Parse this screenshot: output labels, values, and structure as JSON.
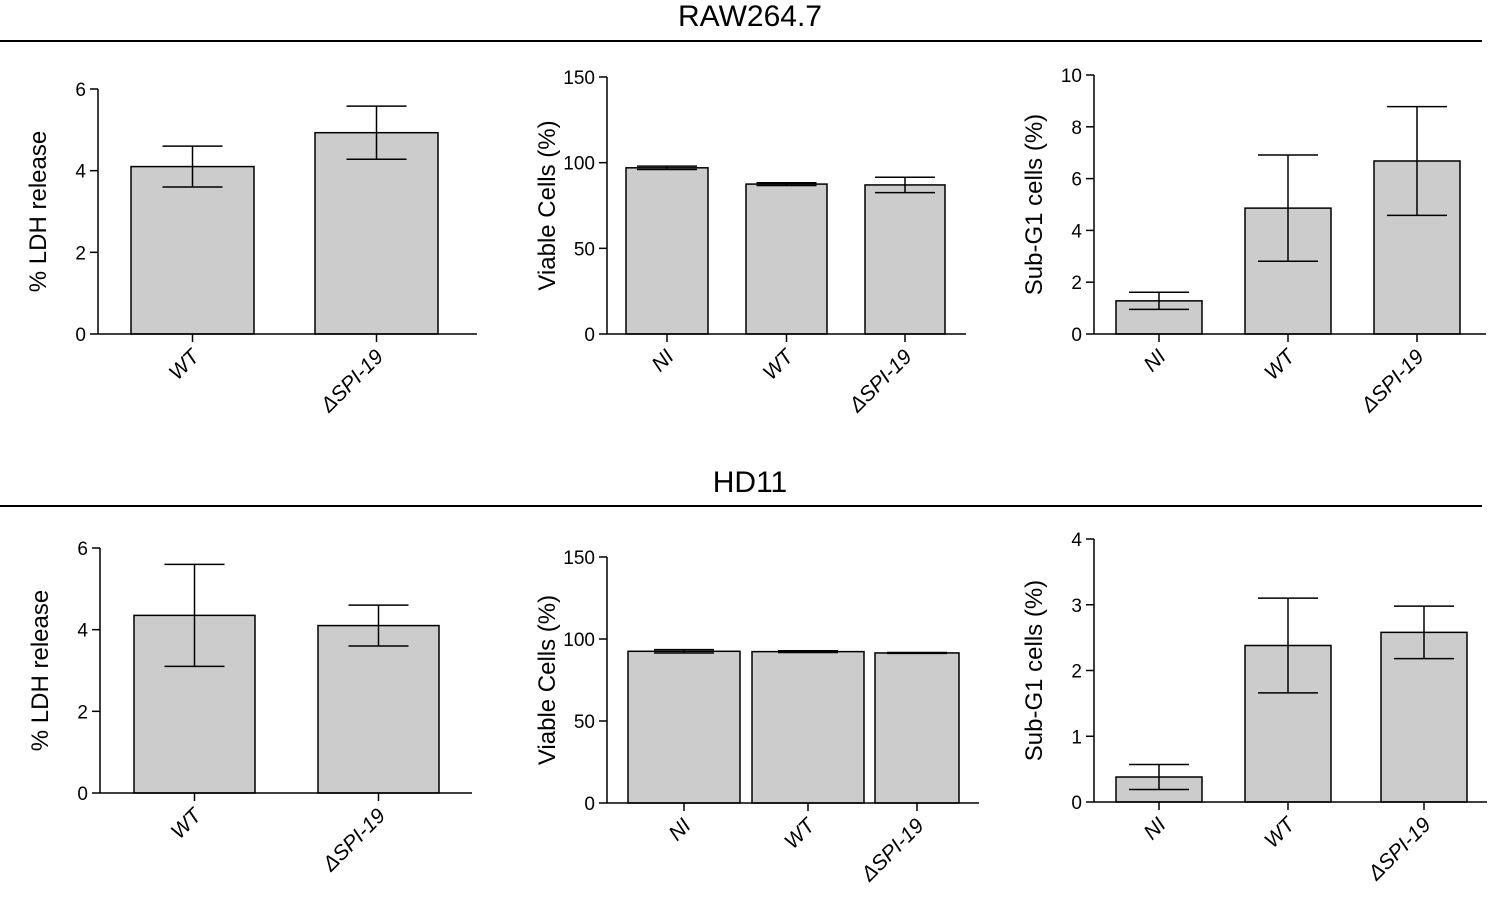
{
  "sections": [
    {
      "title": "RAW264.7"
    },
    {
      "title": "HD11"
    }
  ],
  "chart_data": [
    {
      "type": "bar",
      "panel": "RAW264.7",
      "ylabel": "% LDH release",
      "xlabel": "",
      "categories": [
        "WT",
        "ΔSPI-19"
      ],
      "values": [
        4.1,
        4.93
      ],
      "error": [
        0.5,
        0.65
      ],
      "ylim": [
        0,
        6
      ],
      "yticks": [
        0,
        2,
        4,
        6
      ],
      "grid": false,
      "bar_color": "#cccccc"
    },
    {
      "type": "bar",
      "panel": "RAW264.7",
      "ylabel": "Viable Cells (%)",
      "xlabel": "",
      "categories": [
        "NI",
        "WT",
        "ΔSPI-19"
      ],
      "values": [
        97,
        87.5,
        87
      ],
      "error": [
        1,
        0.8,
        4.5
      ],
      "ylim": [
        0,
        150
      ],
      "yticks": [
        0,
        50,
        100,
        150
      ],
      "grid": false,
      "bar_color": "#cccccc"
    },
    {
      "type": "bar",
      "panel": "RAW264.7",
      "ylabel": "Sub-G1 cells (%)",
      "xlabel": "",
      "categories": [
        "NI",
        "WT",
        "ΔSPI-19"
      ],
      "values": [
        1.28,
        4.86,
        6.68
      ],
      "error": [
        0.33,
        2.05,
        2.1
      ],
      "ylim": [
        0,
        10
      ],
      "yticks": [
        0,
        2,
        4,
        6,
        8,
        10
      ],
      "grid": false,
      "bar_color": "#cccccc"
    },
    {
      "type": "bar",
      "panel": "HD11",
      "ylabel": "% LDH release",
      "xlabel": "",
      "categories": [
        "WT",
        "ΔSPI-19"
      ],
      "values": [
        4.35,
        4.1
      ],
      "error": [
        1.25,
        0.5
      ],
      "ylim": [
        0,
        6
      ],
      "yticks": [
        0,
        2,
        4,
        6
      ],
      "grid": false,
      "bar_color": "#cccccc"
    },
    {
      "type": "bar",
      "panel": "HD11",
      "ylabel": "Viable Cells (%)",
      "xlabel": "",
      "categories": [
        "NI",
        "WT",
        "ΔSPI-19"
      ],
      "values": [
        92.5,
        92.3,
        91.5
      ],
      "error": [
        1,
        0.5,
        0.3
      ],
      "ylim": [
        0,
        150
      ],
      "yticks": [
        0,
        50,
        100,
        150
      ],
      "grid": false,
      "bar_color": "#cccccc"
    },
    {
      "type": "bar",
      "panel": "HD11",
      "ylabel": "Sub-G1 cells (%)",
      "xlabel": "",
      "categories": [
        "NI",
        "WT",
        "ΔSPI-19"
      ],
      "values": [
        0.38,
        2.38,
        2.58
      ],
      "error": [
        0.19,
        0.72,
        0.4
      ],
      "ylim": [
        0,
        4
      ],
      "yticks": [
        0,
        1,
        2,
        3,
        4
      ],
      "grid": false,
      "bar_color": "#cccccc"
    }
  ]
}
